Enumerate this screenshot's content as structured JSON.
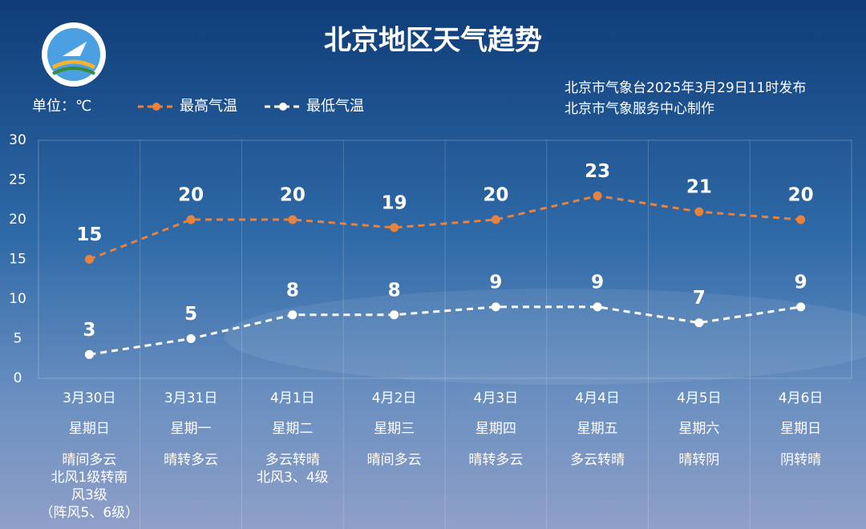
{
  "chart_data": {
    "type": "line",
    "title": "北京地区天气趋势",
    "unit_label": "单位：℃",
    "source": [
      "北京市气象台2025年3月29日11时发布",
      "北京市气象服务中心制作"
    ],
    "categories": [
      "3月30日",
      "3月31日",
      "4月1日",
      "4月2日",
      "4月3日",
      "4月4日",
      "4月5日",
      "4月6日"
    ],
    "weekdays": [
      "星期日",
      "星期一",
      "星期二",
      "星期三",
      "星期四",
      "星期五",
      "星期六",
      "星期日"
    ],
    "weather": [
      [
        "晴间多云",
        "北风1级转南",
        "风3级",
        "（阵风5、6级）"
      ],
      [
        "晴转多云"
      ],
      [
        "多云转晴",
        "北风3、4级"
      ],
      [
        "晴间多云"
      ],
      [
        "晴转多云"
      ],
      [
        "多云转晴"
      ],
      [
        "晴转阴"
      ],
      [
        "阴转晴"
      ]
    ],
    "series": [
      {
        "name": "最高气温",
        "color": "#e8823c",
        "values": [
          15,
          20,
          20,
          19,
          20,
          23,
          21,
          20
        ]
      },
      {
        "name": "最低气温",
        "color": "#ffffff",
        "values": [
          3,
          5,
          8,
          8,
          9,
          9,
          7,
          9
        ]
      }
    ],
    "ylim": [
      0,
      30
    ],
    "yticks": [
      0,
      5,
      10,
      15,
      20,
      25,
      30
    ],
    "grid": false
  }
}
